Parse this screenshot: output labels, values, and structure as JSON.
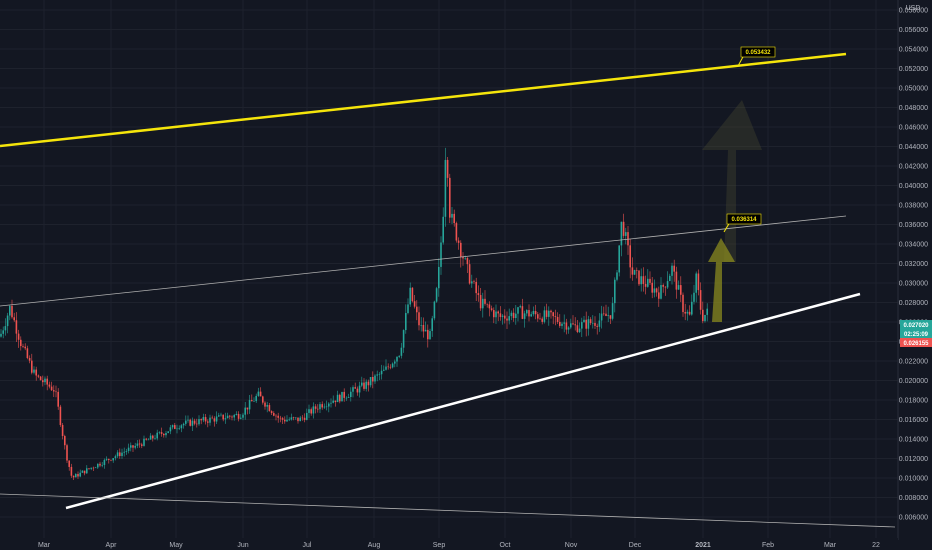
{
  "chart_data": {
    "type": "candlestick",
    "currency_label": "USD",
    "y_ticks": [
      "0.058000",
      "0.056000",
      "0.054000",
      "0.052000",
      "0.050000",
      "0.048000",
      "0.046000",
      "0.044000",
      "0.042000",
      "0.040000",
      "0.038000",
      "0.036000",
      "0.034000",
      "0.032000",
      "0.030000",
      "0.028000",
      "0.026000",
      "0.024000",
      "0.022000",
      "0.020000",
      "0.018000",
      "0.016000",
      "0.014000",
      "0.012000",
      "0.010000",
      "0.008000",
      "0.006000"
    ],
    "x_ticks": [
      "Mar",
      "Apr",
      "May",
      "Jun",
      "Jul",
      "Aug",
      "Sep",
      "Oct",
      "Nov",
      "Dec",
      "2021",
      "Feb",
      "Mar",
      "22"
    ],
    "price_tags": [
      {
        "value": "0.027020",
        "color": "#26a69a"
      },
      {
        "value": "02:25:09",
        "color": "#26a69a"
      },
      {
        "value": "0.026155",
        "color": "#ef5350"
      }
    ],
    "annotations": [
      {
        "text": "0.053432",
        "price": 0.053432
      },
      {
        "text": "0.036314",
        "price": 0.036314
      }
    ],
    "colors": {
      "background": "#131722",
      "up": "#26a69a",
      "down": "#ef5350",
      "upper_trendline": "#f5e50b",
      "lower_trendline": "#ffffff",
      "mid_line": "#c8c8c8",
      "arrow": "#7a7a2a"
    }
  }
}
